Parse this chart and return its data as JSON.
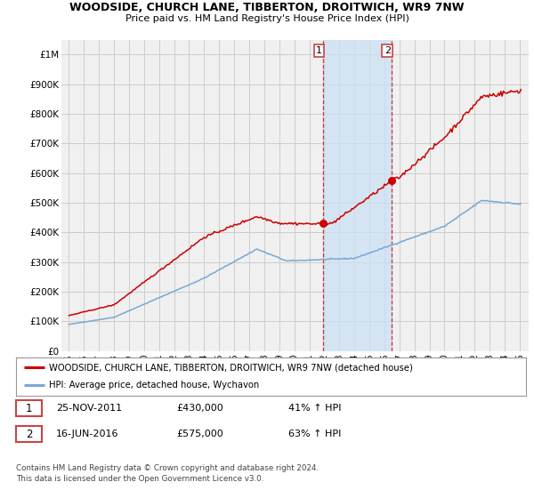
{
  "title": "WOODSIDE, CHURCH LANE, TIBBERTON, DROITWICH, WR9 7NW",
  "subtitle": "Price paid vs. HM Land Registry's House Price Index (HPI)",
  "ylabel_ticks": [
    "£0",
    "£100K",
    "£200K",
    "£300K",
    "£400K",
    "£500K",
    "£600K",
    "£700K",
    "£800K",
    "£900K",
    "£1M"
  ],
  "ytick_values": [
    0,
    100000,
    200000,
    300000,
    400000,
    500000,
    600000,
    700000,
    800000,
    900000,
    1000000
  ],
  "ylim": [
    0,
    1050000
  ],
  "xlim_start": 1994.5,
  "xlim_end": 2025.6,
  "red_line_color": "#cc0000",
  "blue_line_color": "#7aa8d2",
  "grid_color": "#cccccc",
  "bg_color": "#ffffff",
  "plot_bg_color": "#f0f0f0",
  "transaction1_x": 2011.9,
  "transaction1_y": 430000,
  "transaction2_x": 2016.46,
  "transaction2_y": 575000,
  "vline1_x": 2011.9,
  "vline2_x": 2016.46,
  "shade_x1": 2011.9,
  "shade_x2": 2016.46,
  "legend_red_label": "WOODSIDE, CHURCH LANE, TIBBERTON, DROITWICH, WR9 7NW (detached house)",
  "legend_blue_label": "HPI: Average price, detached house, Wychavon",
  "table_row1": [
    "1",
    "25-NOV-2011",
    "£430,000",
    "41% ↑ HPI"
  ],
  "table_row2": [
    "2",
    "16-JUN-2016",
    "£575,000",
    "63% ↑ HPI"
  ],
  "footer": "Contains HM Land Registry data © Crown copyright and database right 2024.\nThis data is licensed under the Open Government Licence v3.0.",
  "xlabel_years": [
    1995,
    1996,
    1997,
    1998,
    1999,
    2000,
    2001,
    2002,
    2003,
    2004,
    2005,
    2006,
    2007,
    2008,
    2009,
    2010,
    2011,
    2012,
    2013,
    2014,
    2015,
    2016,
    2017,
    2018,
    2019,
    2020,
    2021,
    2022,
    2023,
    2024,
    2025
  ]
}
